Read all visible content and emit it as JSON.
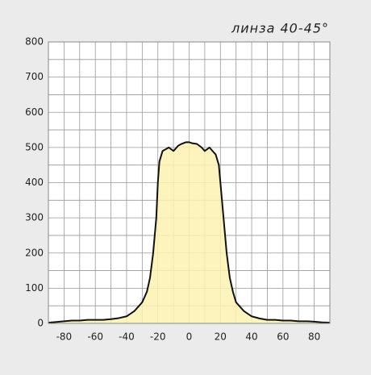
{
  "chart_data": {
    "type": "area",
    "title": "линза 40-45°",
    "x": [
      -90,
      -85,
      -80,
      -75,
      -70,
      -65,
      -60,
      -55,
      -50,
      -45,
      -40,
      -35,
      -30,
      -27,
      -25,
      -23,
      -21,
      -20,
      -19,
      -17,
      -15,
      -13,
      -10,
      -7,
      -5,
      -2,
      0,
      2,
      5,
      8,
      10,
      13,
      15,
      17,
      19,
      20,
      22,
      24,
      26,
      28,
      30,
      35,
      40,
      45,
      50,
      55,
      60,
      65,
      70,
      75,
      80,
      85,
      90
    ],
    "values": [
      2,
      4,
      6,
      8,
      8,
      10,
      10,
      10,
      12,
      15,
      20,
      35,
      60,
      90,
      130,
      200,
      300,
      400,
      460,
      490,
      495,
      500,
      490,
      505,
      510,
      515,
      515,
      512,
      510,
      500,
      490,
      500,
      490,
      480,
      450,
      400,
      300,
      200,
      130,
      90,
      60,
      35,
      20,
      14,
      10,
      10,
      8,
      8,
      6,
      6,
      5,
      3,
      2
    ],
    "color": "#fbf2b0",
    "line_color": "#111111",
    "xlim": [
      -90,
      90
    ],
    "xticks": [
      -80,
      -60,
      -40,
      -20,
      0,
      20,
      40,
      60,
      80
    ],
    "ylim": [
      0,
      800
    ],
    "yticks": [
      0,
      100,
      200,
      300,
      400,
      500,
      600,
      700,
      800
    ],
    "xgrid": [
      -90,
      -80,
      -70,
      -60,
      -50,
      -40,
      -30,
      -20,
      -10,
      0,
      10,
      20,
      30,
      40,
      50,
      60,
      70,
      80,
      90
    ],
    "ygrid": [
      0,
      50,
      100,
      150,
      200,
      250,
      300,
      350,
      400,
      450,
      500,
      550,
      600,
      650,
      700,
      750,
      800
    ],
    "grid": true
  }
}
